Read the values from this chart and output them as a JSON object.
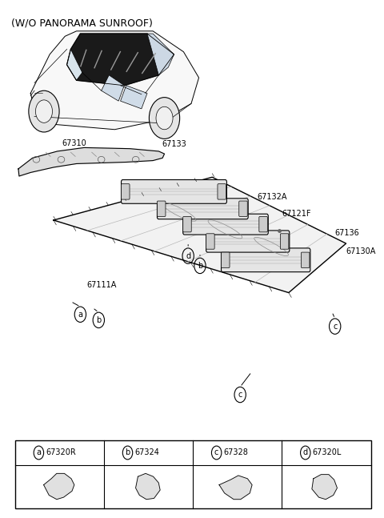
{
  "title": "(W/O PANORAMA SUNROOF)",
  "title_fontsize": 9,
  "bg_color": "#ffffff",
  "line_color": "#000000",
  "table_entries": [
    {
      "letter": "a",
      "part": "67320R",
      "col": 0
    },
    {
      "letter": "b",
      "part": "67324",
      "col": 1
    },
    {
      "letter": "c",
      "part": "67328",
      "col": 2
    },
    {
      "letter": "d",
      "part": "67320L",
      "col": 3
    }
  ]
}
